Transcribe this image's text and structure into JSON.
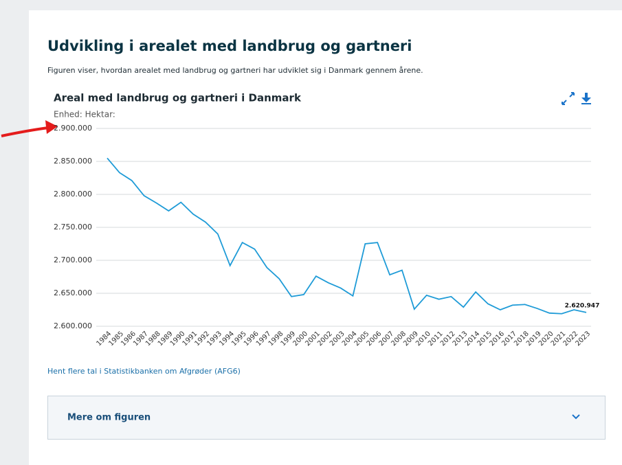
{
  "heading": "Udvikling i arealet med landbrug og gartneri",
  "intro": "Figuren viser, hvordan arealet med landbrug og gartneri har udviklet sig i Danmark gennem årene.",
  "chart_data": {
    "type": "line",
    "title": "Areal med landbrug og gartneri i Danmark",
    "subtitle": "Enhed: Hektar:",
    "categories": [
      "1984",
      "1985",
      "1986",
      "1987",
      "1988",
      "1989",
      "1990",
      "1991",
      "1992",
      "1993",
      "1994",
      "1995",
      "1996",
      "1997",
      "1998",
      "1999",
      "2000",
      "2001",
      "2002",
      "2003",
      "2004",
      "2005",
      "2006",
      "2007",
      "2008",
      "2009",
      "2010",
      "2011",
      "2012",
      "2013",
      "2014",
      "2015",
      "2016",
      "2017",
      "2018",
      "2019",
      "2020",
      "2021",
      "2022",
      "2023"
    ],
    "series": [
      {
        "name": "Areal",
        "color": "#1e9bd7",
        "values": [
          2855000,
          2833000,
          2821000,
          2798000,
          2787000,
          2775000,
          2788000,
          2770000,
          2758000,
          2740000,
          2692000,
          2727000,
          2717000,
          2689000,
          2672000,
          2645000,
          2648000,
          2676000,
          2666000,
          2658000,
          2646000,
          2725000,
          2727000,
          2678000,
          2685000,
          2626000,
          2647000,
          2641000,
          2645000,
          2629000,
          2652000,
          2634000,
          2625000,
          2632000,
          2633000,
          2627000,
          2620000,
          2619000,
          2625000,
          2620947
        ],
        "value_labels": [
          null,
          null,
          null,
          null,
          null,
          null,
          null,
          null,
          null,
          null,
          null,
          null,
          null,
          null,
          null,
          null,
          null,
          null,
          null,
          null,
          null,
          null,
          null,
          null,
          null,
          null,
          null,
          null,
          null,
          null,
          null,
          null,
          null,
          null,
          null,
          null,
          null,
          null,
          null,
          "2.620.947"
        ]
      }
    ],
    "ylim": [
      2600000,
      2900000
    ],
    "yticks": [
      {
        "value": 2600000,
        "label": "2.600.000"
      },
      {
        "value": 2650000,
        "label": "2.650.000"
      },
      {
        "value": 2700000,
        "label": "2.700.000"
      },
      {
        "value": 2750000,
        "label": "2.750.000"
      },
      {
        "value": 2800000,
        "label": "2.800.000"
      },
      {
        "value": 2850000,
        "label": "2.850.000"
      },
      {
        "value": 2900000,
        "label": "2.900.000"
      }
    ],
    "grid": true
  },
  "link": "Hent flere tal i Statistikbanken om Afgrøder (AFG6)",
  "accordion": "Mere om figuren"
}
